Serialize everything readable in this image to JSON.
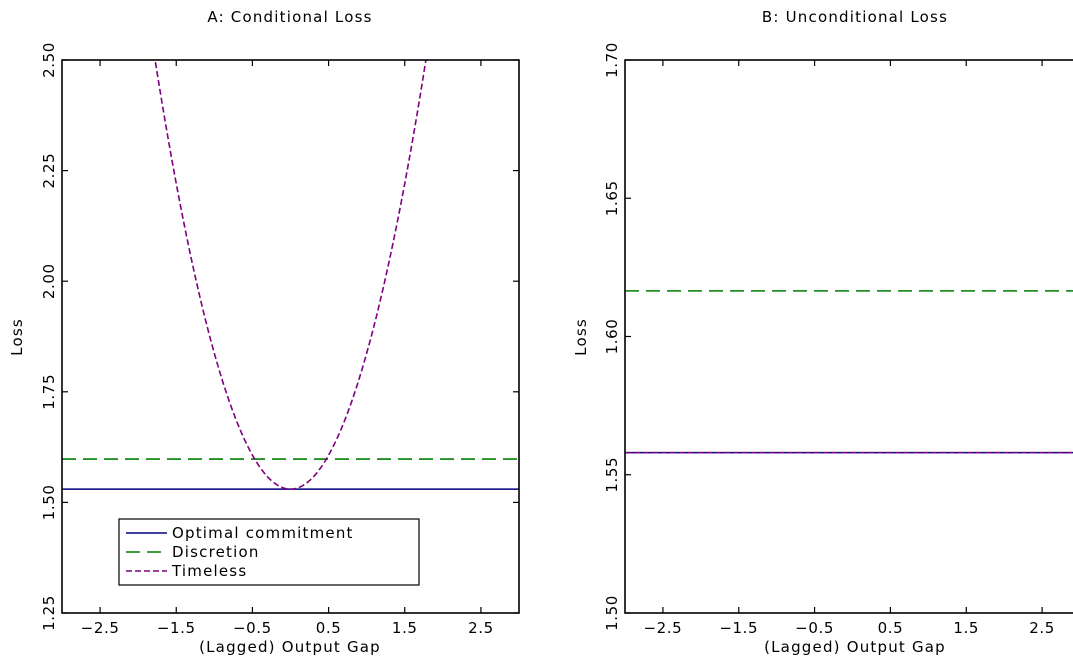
{
  "chart_data": [
    {
      "panel": "A",
      "type": "line",
      "title": "A: Conditional Loss",
      "xlabel": "(Lagged) Output Gap",
      "ylabel": "Loss",
      "xlim": [
        -3.0,
        3.0
      ],
      "ylim": [
        1.25,
        2.5
      ],
      "xticks": [
        "−2.5",
        "−1.5",
        "−0.5",
        "0.5",
        "1.5",
        "2.5"
      ],
      "xtick_values": [
        -2.5,
        -1.5,
        -0.5,
        0.5,
        1.5,
        2.5
      ],
      "yticks": [
        "1.25",
        "1.50",
        "1.75",
        "2.00",
        "2.25",
        "2.50"
      ],
      "ytick_values": [
        1.25,
        1.5,
        1.75,
        2.0,
        2.25,
        2.5
      ],
      "legend": {
        "position": "lower-left",
        "entries": [
          "Optimal commitment",
          "Discretion",
          "Timeless"
        ]
      },
      "series": [
        {
          "name": "Optimal commitment",
          "color": "#00007f",
          "style": "solid",
          "shape": "constant",
          "y": 1.53
        },
        {
          "name": "Discretion",
          "color": "#007f00",
          "style": "dashed",
          "shape": "constant",
          "y": 1.598
        },
        {
          "name": "Timeless",
          "color": "#7f007f",
          "style": "dashed-fine",
          "shape": "quadratic",
          "vertex_x": 0.0,
          "vertex_y": 1.53,
          "curvature": 0.307
        }
      ]
    },
    {
      "panel": "B",
      "type": "line",
      "title": "B: Unconditional Loss",
      "xlabel": "(Lagged) Output Gap",
      "ylabel": "Loss",
      "xlim": [
        -3.0,
        3.0
      ],
      "ylim": [
        1.5,
        1.7
      ],
      "xticks": [
        "−2.5",
        "−1.5",
        "−0.5",
        "0.5",
        "1.5",
        "2.5"
      ],
      "xtick_values": [
        -2.5,
        -1.5,
        -0.5,
        0.5,
        1.5,
        2.5
      ],
      "yticks": [
        "1.50",
        "1.55",
        "1.60",
        "1.65",
        "1.70"
      ],
      "ytick_values": [
        1.5,
        1.55,
        1.6,
        1.65,
        1.7
      ],
      "series": [
        {
          "name": "Optimal commitment",
          "color": "#00007f",
          "style": "solid",
          "shape": "constant",
          "y": 1.558
        },
        {
          "name": "Discretion",
          "color": "#007f00",
          "style": "dashed",
          "shape": "constant",
          "y": 1.6165
        },
        {
          "name": "Timeless",
          "color": "#7f007f",
          "style": "dashed-fine",
          "shape": "constant",
          "y": 1.558
        }
      ]
    }
  ]
}
